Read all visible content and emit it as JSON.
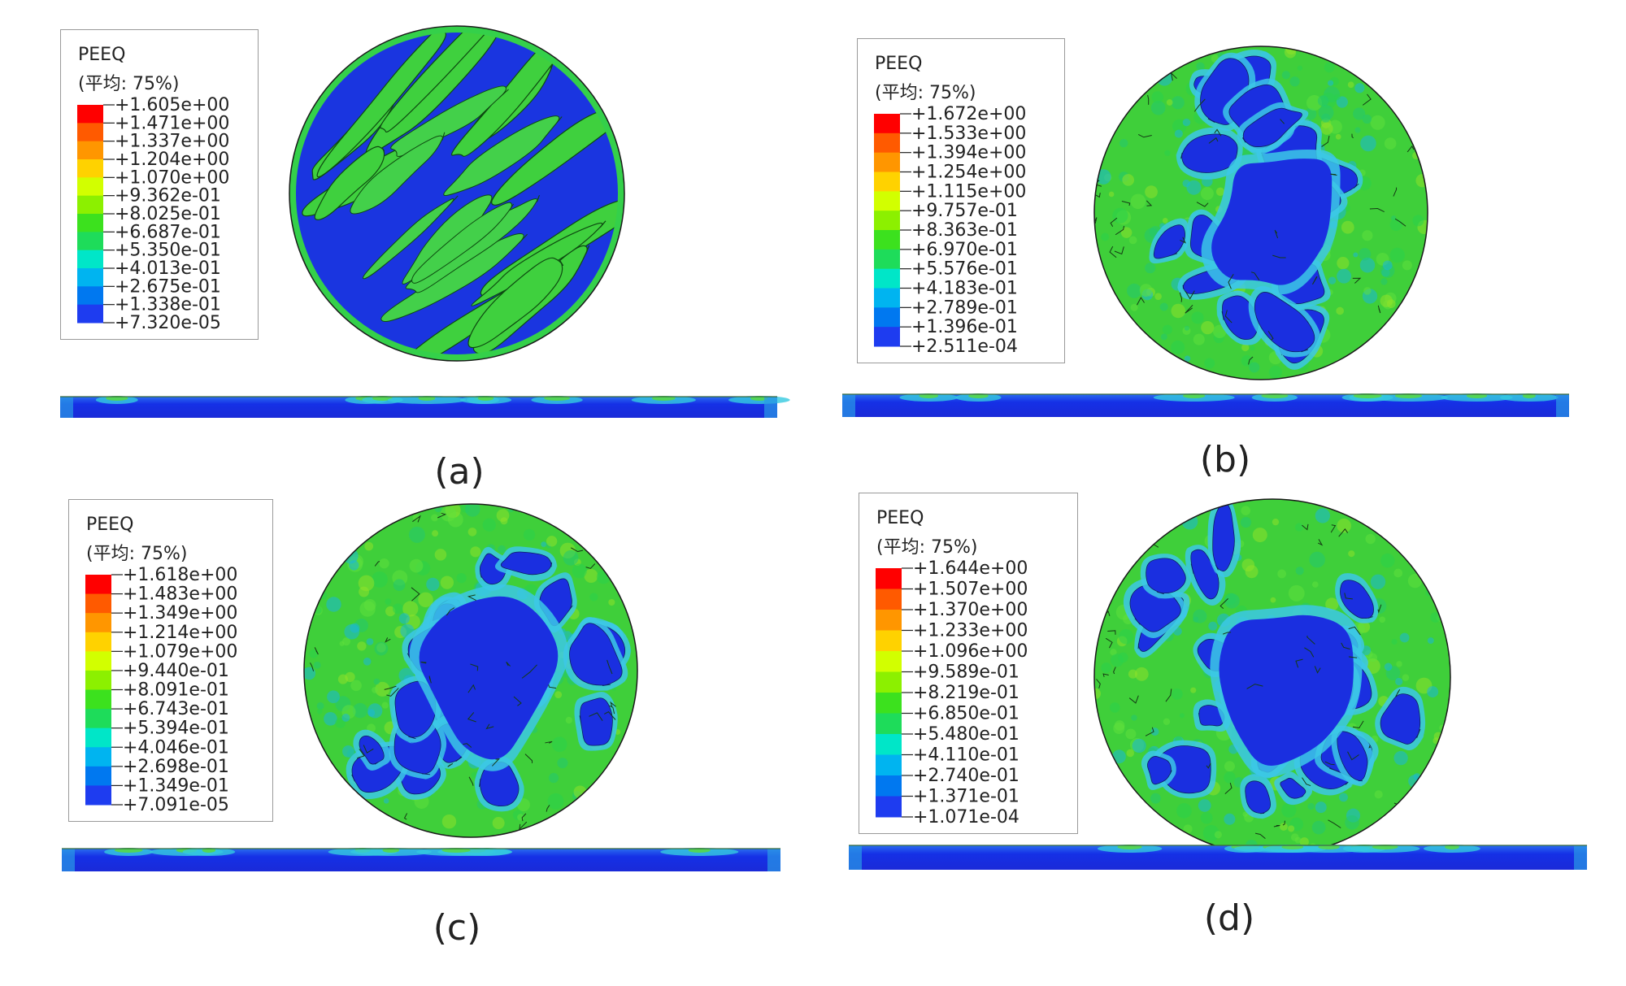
{
  "panels": [
    {
      "label": "(a)",
      "legend": {
        "title": "PEEQ",
        "subtitle": "(平均: 75%)",
        "values": [
          "+1.605e+00",
          "+1.471e+00",
          "+1.337e+00",
          "+1.204e+00",
          "+1.070e+00",
          "+9.362e-01",
          "+8.025e-01",
          "+6.687e-01",
          "+5.350e-01",
          "+4.013e-01",
          "+2.675e-01",
          "+1.338e-01",
          "+7.320e-05"
        ]
      }
    },
    {
      "label": "(b)",
      "legend": {
        "title": "PEEQ",
        "subtitle": "(平均: 75%)",
        "values": [
          "+1.672e+00",
          "+1.533e+00",
          "+1.394e+00",
          "+1.254e+00",
          "+1.115e+00",
          "+9.757e-01",
          "+8.363e-01",
          "+6.970e-01",
          "+5.576e-01",
          "+4.183e-01",
          "+2.789e-01",
          "+1.396e-01",
          "+2.511e-04"
        ]
      }
    },
    {
      "label": "(c)",
      "legend": {
        "title": "PEEQ",
        "subtitle": "(平均: 75%)",
        "values": [
          "+1.618e+00",
          "+1.483e+00",
          "+1.349e+00",
          "+1.214e+00",
          "+1.079e+00",
          "+9.440e-01",
          "+8.091e-01",
          "+6.743e-01",
          "+5.394e-01",
          "+4.046e-01",
          "+2.698e-01",
          "+1.349e-01",
          "+7.091e-05"
        ]
      }
    },
    {
      "label": "(d)",
      "legend": {
        "title": "PEEQ",
        "subtitle": "(平均: 75%)",
        "values": [
          "+1.644e+00",
          "+1.507e+00",
          "+1.370e+00",
          "+1.233e+00",
          "+1.096e+00",
          "+9.589e-01",
          "+8.219e-01",
          "+6.850e-01",
          "+5.480e-01",
          "+4.110e-01",
          "+2.740e-01",
          "+1.371e-01",
          "+1.071e-04"
        ]
      }
    }
  ],
  "colormap": [
    "#ff0000",
    "#ff5a00",
    "#ff9600",
    "#ffd200",
    "#d2ff00",
    "#8cf000",
    "#3ce11e",
    "#1edc5a",
    "#00e6c8",
    "#00b4f0",
    "#0078f0",
    "#1e3cf0",
    "#0000e6"
  ]
}
